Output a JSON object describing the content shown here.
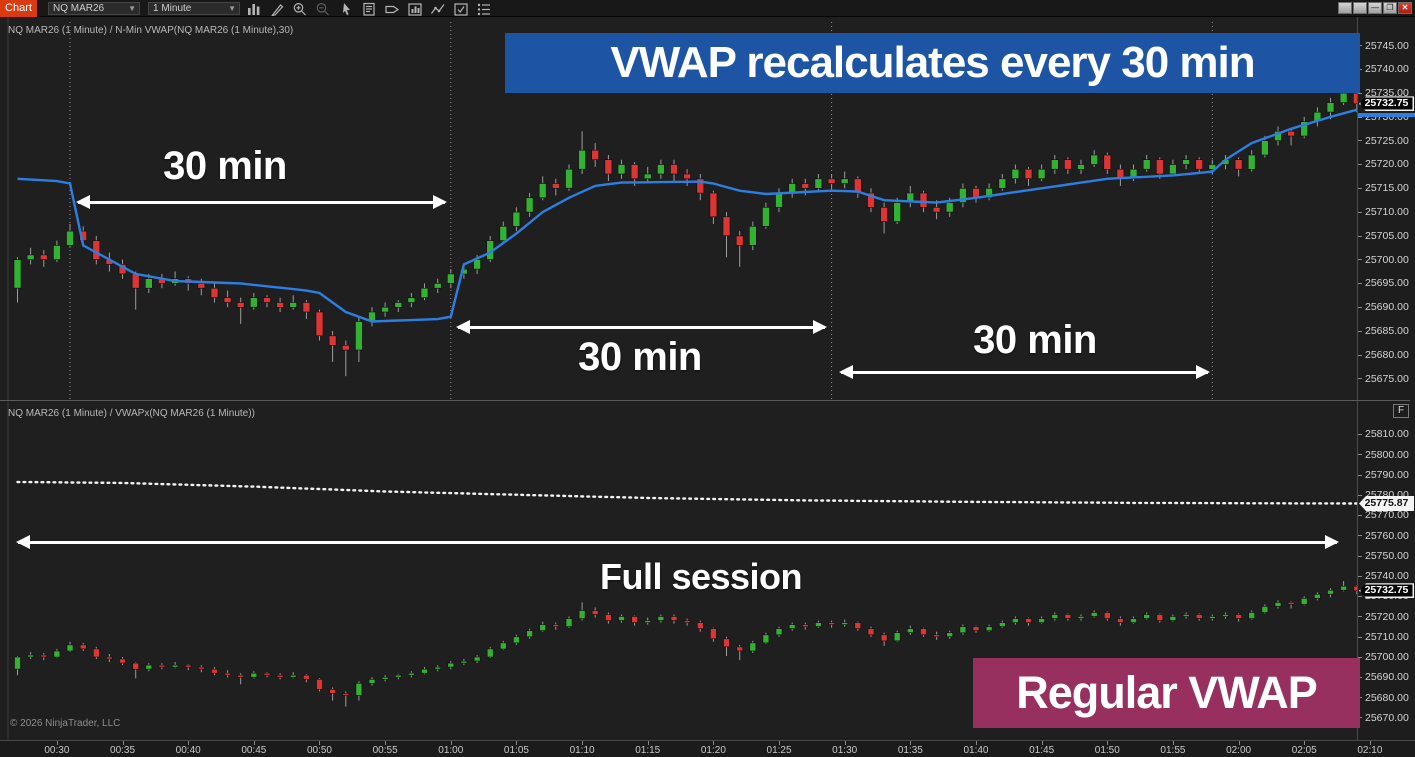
{
  "titlebar": {
    "app_label": "Chart",
    "instrument": "NQ MAR26",
    "interval": "1 Minute",
    "toolbar_icons": [
      "bar-type-icon",
      "drawing-tools-icon",
      "zoom-in-icon",
      "zoom-out-icon",
      "pointer-icon",
      "data-box-icon",
      "price-alert-icon",
      "chart-trader-icon",
      "line-study-icon",
      "properties-icon",
      "data-series-icon"
    ],
    "window_controls": [
      {
        "name": "window-button-1",
        "glyph": "blank"
      },
      {
        "name": "window-button-2",
        "glyph": "blank"
      },
      {
        "name": "minimize-button",
        "glyph": "minimize"
      },
      {
        "name": "restore-button",
        "glyph": "restore"
      },
      {
        "name": "close-button",
        "glyph": "close"
      }
    ]
  },
  "annotations": {
    "banner_top": "VWAP recalculates every 30 min",
    "banner_bottom": "Regular VWAP",
    "interval_label_1": "30 min",
    "interval_label_2": "30 min",
    "interval_label_3": "30 min",
    "session_label": "Full session"
  },
  "copyright": "© 2026 NinjaTrader, LLC",
  "fix_scale_label": "F",
  "colors": {
    "up": "#33b133",
    "down": "#dd3434",
    "wick": "#9c9c9c",
    "vwap_nmin": "#2b7fe3",
    "vwap_session": "#f2f2f2",
    "banner_blue": "#1d55a4",
    "banner_purple": "#97305f",
    "app_red": "#da3a12",
    "reset_line": "#8f8f8f"
  },
  "time_axis": {
    "labels": [
      "00:30",
      "00:35",
      "00:40",
      "00:45",
      "00:50",
      "00:55",
      "01:00",
      "01:05",
      "01:10",
      "01:15",
      "01:20",
      "01:25",
      "01:30",
      "01:35",
      "01:40",
      "01:45",
      "01:50",
      "01:55",
      "02:00",
      "02:05",
      "02:10"
    ]
  },
  "chart_data": [
    {
      "type": "candlestick",
      "title": "NQ MAR26 (1 Minute) / N-Min VWAP(NQ MAR26 (1 Minute),30)",
      "x_start": "00:27",
      "interval_minutes": 1,
      "ylim": [
        25670.5,
        25751.0
      ],
      "axis_ticks": [
        "25745.00",
        "25740.00",
        "25735.00",
        "25730.00",
        "25725.00",
        "25720.00",
        "25715.00",
        "25710.00",
        "25705.00",
        "25700.00",
        "25695.00",
        "25690.00",
        "25685.00",
        "25680.00",
        "25675.00"
      ],
      "last_price": "25732.75",
      "markers": [
        {
          "value": 25732.75,
          "label": "25732.75",
          "style": "dark"
        }
      ],
      "vwap_marker_value": 25731.5,
      "reset_line_indices": [
        4,
        33,
        62,
        91
      ],
      "overlay": {
        "name": "N-Min VWAP (30 min reset)",
        "style": "solid",
        "color": "#2b7fe3",
        "anchors": [
          [
            0,
            25717
          ],
          [
            3,
            25716.5
          ],
          [
            4,
            25716
          ],
          [
            5,
            25703
          ],
          [
            7,
            25700
          ],
          [
            9,
            25697
          ],
          [
            12,
            25695.5
          ],
          [
            17,
            25695
          ],
          [
            22,
            25693.5
          ],
          [
            23,
            25693
          ],
          [
            25,
            25689
          ],
          [
            27,
            25687
          ],
          [
            32,
            25687.5
          ],
          [
            33,
            25688
          ],
          [
            34,
            25699
          ],
          [
            36,
            25701.5
          ],
          [
            38,
            25705.5
          ],
          [
            40,
            25710
          ],
          [
            42,
            25713
          ],
          [
            44,
            25715.5
          ],
          [
            46,
            25716.2
          ],
          [
            52,
            25716.4
          ],
          [
            53,
            25716
          ],
          [
            55,
            25714.5
          ],
          [
            57,
            25713.8
          ],
          [
            62,
            25714.5
          ],
          [
            64,
            25714.3
          ],
          [
            66,
            25712.5
          ],
          [
            70,
            25712
          ],
          [
            73,
            25713
          ],
          [
            78,
            25715
          ],
          [
            83,
            25717
          ],
          [
            88,
            25717.7
          ],
          [
            91,
            25718.5
          ],
          [
            92,
            25721
          ],
          [
            94,
            25724.5
          ],
          [
            97,
            25727.5
          ],
          [
            100,
            25730
          ],
          [
            102,
            25731.5
          ]
        ]
      },
      "candles": [
        [
          25694,
          25700.5,
          25691,
          25700
        ],
        [
          25700,
          25702.5,
          25699,
          25701
        ],
        [
          25701,
          25702,
          25698.5,
          25700
        ],
        [
          25700,
          25704,
          25699.5,
          25703
        ],
        [
          25703,
          25707.5,
          25702.5,
          25706
        ],
        [
          25706,
          25707,
          25703,
          25704
        ],
        [
          25704,
          25705,
          25699,
          25700
        ],
        [
          25700,
          25701.5,
          25697.5,
          25699
        ],
        [
          25699,
          25700,
          25696,
          25697
        ],
        [
          25697,
          25697.5,
          25689.5,
          25694
        ],
        [
          25694,
          25697,
          25693,
          25696
        ],
        [
          25696,
          25697,
          25694,
          25695
        ],
        [
          25695,
          25697.5,
          25694.5,
          25696
        ],
        [
          25696,
          25696.5,
          25693.5,
          25695
        ],
        [
          25695,
          25696,
          25692.5,
          25694
        ],
        [
          25694,
          25695,
          25691,
          25692
        ],
        [
          25692,
          25693.5,
          25690,
          25691
        ],
        [
          25691,
          25692,
          25686.5,
          25690
        ],
        [
          25690,
          25693,
          25689.5,
          25692
        ],
        [
          25692,
          25692.5,
          25690,
          25691
        ],
        [
          25691,
          25692,
          25689,
          25690
        ],
        [
          25690,
          25692.5,
          25689.5,
          25691
        ],
        [
          25691,
          25691.5,
          25687.5,
          25689
        ],
        [
          25689,
          25689.5,
          25683,
          25684
        ],
        [
          25684,
          25685,
          25678.5,
          25682
        ],
        [
          25682,
          25683,
          25675.5,
          25681
        ],
        [
          25681,
          25688,
          25678.5,
          25687
        ],
        [
          25687,
          25690,
          25686,
          25689
        ],
        [
          25689,
          25691,
          25688,
          25690
        ],
        [
          25690,
          25691.5,
          25689,
          25691
        ],
        [
          25691,
          25693,
          25690,
          25692
        ],
        [
          25692,
          25695,
          25691.5,
          25694
        ],
        [
          25694,
          25696,
          25693,
          25695
        ],
        [
          25695,
          25698,
          25694,
          25697
        ],
        [
          25697,
          25699,
          25696,
          25698
        ],
        [
          25698,
          25701,
          25697,
          25700
        ],
        [
          25700,
          25705,
          25699.5,
          25704
        ],
        [
          25704,
          25708,
          25703.5,
          25707
        ],
        [
          25707,
          25711,
          25706,
          25710
        ],
        [
          25710,
          25714,
          25709,
          25713
        ],
        [
          25713,
          25717.5,
          25712.5,
          25716
        ],
        [
          25716,
          25717,
          25713.5,
          25715
        ],
        [
          25715,
          25720,
          25714.5,
          25719
        ],
        [
          25719,
          25727,
          25718,
          25723
        ],
        [
          25723,
          25724.5,
          25719.5,
          25721
        ],
        [
          25721,
          25722,
          25716.5,
          25718
        ],
        [
          25718,
          25721,
          25717,
          25720
        ],
        [
          25720,
          25720.5,
          25715.5,
          25717
        ],
        [
          25717,
          25719.5,
          25716,
          25718
        ],
        [
          25718,
          25721,
          25717,
          25720
        ],
        [
          25720,
          25721,
          25716.5,
          25718
        ],
        [
          25718,
          25719,
          25715.5,
          25717
        ],
        [
          25717,
          25718,
          25712.5,
          25714
        ],
        [
          25714,
          25714.5,
          25707.5,
          25709
        ],
        [
          25709,
          25710,
          25700.5,
          25705
        ],
        [
          25705,
          25706,
          25698.5,
          25703
        ],
        [
          25703,
          25708,
          25702,
          25707
        ],
        [
          25707,
          25712,
          25706.5,
          25711
        ],
        [
          25711,
          25715,
          25710,
          25714
        ],
        [
          25714,
          25717,
          25713,
          25716
        ],
        [
          25716,
          25717,
          25713.5,
          25715
        ],
        [
          25715,
          25718,
          25714.5,
          25717
        ],
        [
          25717,
          25718,
          25714.5,
          25716
        ],
        [
          25716,
          25718.5,
          25715,
          25717
        ],
        [
          25717,
          25717.5,
          25713,
          25714
        ],
        [
          25714,
          25715,
          25710,
          25711
        ],
        [
          25711,
          25712,
          25705.5,
          25708
        ],
        [
          25708,
          25713,
          25707.5,
          25712
        ],
        [
          25712,
          25715.5,
          25711,
          25714
        ],
        [
          25714,
          25714.5,
          25710,
          25711
        ],
        [
          25711,
          25712.5,
          25708.5,
          25710
        ],
        [
          25710,
          25713,
          25709,
          25712
        ],
        [
          25712,
          25716,
          25711,
          25715
        ],
        [
          25715,
          25715.5,
          25712,
          25713
        ],
        [
          25713,
          25716,
          25712.5,
          25715
        ],
        [
          25715,
          25718,
          25714.5,
          25717
        ],
        [
          25717,
          25720,
          25716,
          25719
        ],
        [
          25719,
          25719.5,
          25715.5,
          25717
        ],
        [
          25717,
          25720,
          25716.5,
          25719
        ],
        [
          25719,
          25722,
          25718,
          25721
        ],
        [
          25721,
          25721.5,
          25718,
          25719
        ],
        [
          25719,
          25721,
          25718,
          25720
        ],
        [
          25720,
          25723,
          25719.5,
          25722
        ],
        [
          25722,
          25722.5,
          25718,
          25719
        ],
        [
          25719,
          25720,
          25715.5,
          25717
        ],
        [
          25717,
          25720,
          25716.5,
          25719
        ],
        [
          25719,
          25722,
          25718.5,
          25721
        ],
        [
          25721,
          25721.5,
          25717,
          25718
        ],
        [
          25718,
          25721,
          25717.5,
          25720
        ],
        [
          25720,
          25722,
          25719,
          25721
        ],
        [
          25721,
          25721.5,
          25718,
          25719
        ],
        [
          25719,
          25721,
          25718,
          25720
        ],
        [
          25720,
          25722,
          25719,
          25721
        ],
        [
          25721,
          25721.5,
          25717.5,
          25719
        ],
        [
          25719,
          25723,
          25718.5,
          25722
        ],
        [
          25722,
          25726,
          25721.5,
          25725
        ],
        [
          25725,
          25728,
          25724,
          25727
        ],
        [
          25727,
          25727.5,
          25724,
          25726
        ],
        [
          25726,
          25730,
          25725.5,
          25729
        ],
        [
          25729,
          25732,
          25728,
          25731
        ],
        [
          25731,
          25734,
          25729.5,
          25733
        ],
        [
          25733,
          25737.5,
          25732.5,
          25735
        ],
        [
          25735,
          25735.5,
          25731,
          25732.75
        ]
      ]
    },
    {
      "type": "candlestick",
      "title": "NQ MAR26 (1 Minute) / VWAPx(NQ MAR26 (1 Minute))",
      "x_start": "00:27",
      "interval_minutes": 1,
      "ylim": [
        25659.0,
        25827.0
      ],
      "axis_ticks": [
        "25810.00",
        "25800.00",
        "25790.00",
        "25780.00",
        "25770.00",
        "25760.00",
        "25750.00",
        "25740.00",
        "25730.00",
        "25720.00",
        "25710.00",
        "25700.00",
        "25690.00",
        "25680.00",
        "25670.00"
      ],
      "last_price": "25732.75",
      "markers": [
        {
          "value": 25775.87,
          "label": "25775.87",
          "style": "light"
        },
        {
          "value": 25732.75,
          "label": "25732.75",
          "style": "dark"
        }
      ],
      "candles_ref": 0,
      "overlay": {
        "name": "VWAPx full session",
        "style": "dotted",
        "color": "#f2f2f2",
        "anchors": [
          [
            0,
            25786.5
          ],
          [
            8,
            25786
          ],
          [
            18,
            25784.2
          ],
          [
            28,
            25781.8
          ],
          [
            36,
            25780.5
          ],
          [
            48,
            25778.6
          ],
          [
            60,
            25777.4
          ],
          [
            72,
            25776.7
          ],
          [
            84,
            25776.2
          ],
          [
            95,
            25775.95
          ],
          [
            102,
            25775.87
          ]
        ]
      }
    }
  ]
}
